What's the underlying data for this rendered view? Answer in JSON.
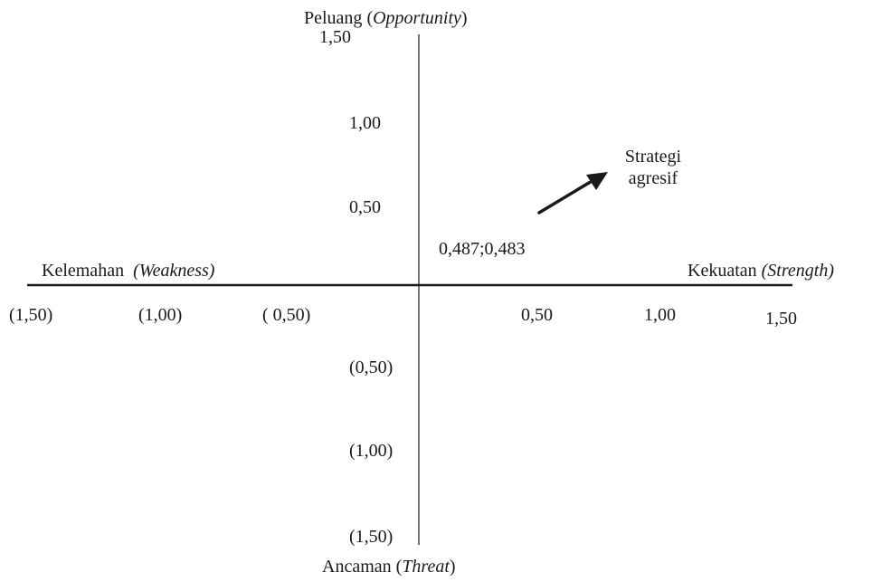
{
  "axes": {
    "top_label": {
      "main": "Peluang",
      "paren_open": " (",
      "italic": "Opportunity",
      "paren_close": ")"
    },
    "bottom_label": {
      "main": "Ancaman",
      "paren_open": " (",
      "italic": "Threat",
      "paren_close": ")"
    },
    "left_label": {
      "main": "Kelemahan",
      "italic": "(Weakness)"
    },
    "right_label": {
      "main": "Kekuatan",
      "italic": "(Strength)"
    }
  },
  "x_ticks": {
    "neg_150": "(1,50)",
    "neg_100": "(1,00)",
    "neg_050": "( 0,50)",
    "pos_050": "0,50",
    "pos_100": "1,00",
    "pos_150": "1,50"
  },
  "y_ticks": {
    "pos_150": "1,50",
    "pos_100": "1,00",
    "pos_050": "0,50",
    "neg_050": "(0,50)",
    "neg_100": "(1,00)",
    "neg_150": "(1,50)"
  },
  "point": {
    "label": "0,487;0,483",
    "x": 0.487,
    "y": 0.483
  },
  "strategy": {
    "line1": "Strategi",
    "line2": "agresif"
  },
  "colors": {
    "line": "#1a1a1a",
    "text": "#1a1a1a"
  }
}
